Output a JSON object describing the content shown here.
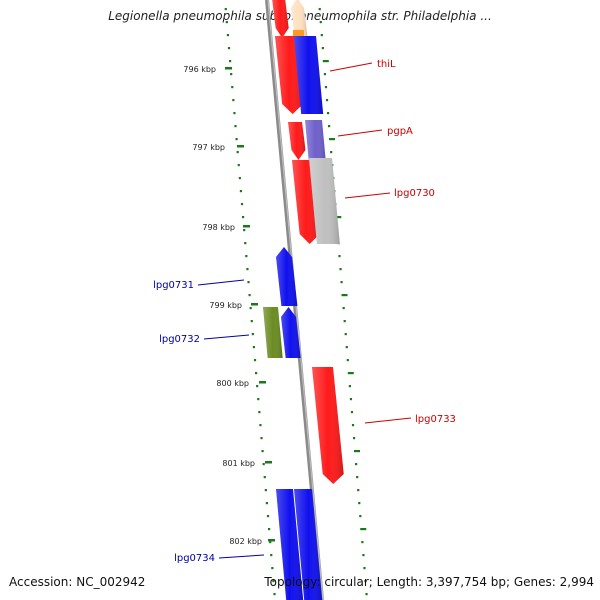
{
  "title": "Legionella pneumophila subsp. pneumophila str. Philadelphia ...",
  "footer": {
    "accession": "Accession: NC_002942",
    "summary": "Topology: circular; Length: 3,397,754 bp; Genes: 2,994"
  },
  "colors": {
    "backbone": "#8a8a8a",
    "tick": "#1a7a1a",
    "forward_gene_label": "#cc0000",
    "reverse_gene_label": "#0000aa"
  },
  "ruler": {
    "labels": [
      "796 kbp",
      "797 kbp",
      "798 kbp",
      "799 kbp",
      "800 kbp",
      "801 kbp",
      "802 kbp"
    ]
  },
  "genes": [
    {
      "label": "",
      "color": "#ff1a1a",
      "strand": "reverse"
    },
    {
      "label": "",
      "color": "#ffe0c0",
      "strand": "forward"
    },
    {
      "label": "thiL",
      "color": "#ff1a1a",
      "strand": "reverse"
    },
    {
      "label": "",
      "color": "#1010ee",
      "strand": "forward"
    },
    {
      "label": "pgpA",
      "color": "#ff1a1a",
      "strand": "reverse"
    },
    {
      "label": "",
      "color": "#7060cc",
      "strand": "forward"
    },
    {
      "label": "lpg0730",
      "color": "#ff1a1a",
      "strand": "reverse"
    },
    {
      "label": "",
      "color": "#c0c0c0",
      "strand": "forward"
    },
    {
      "label": "lpg0731",
      "color": "#1010ee",
      "strand": "forward"
    },
    {
      "label": "lpg0732",
      "color": "#6b8c22",
      "strand": "reverse"
    },
    {
      "label": "",
      "color": "#1010ee",
      "strand": "forward"
    },
    {
      "label": "lpg0733",
      "color": "#ff1a1a",
      "strand": "reverse"
    },
    {
      "label": "lpg0734",
      "color": "#1010ee",
      "strand": "reverse"
    },
    {
      "label": "",
      "color": "#1010ee",
      "strand": "reverse"
    }
  ]
}
